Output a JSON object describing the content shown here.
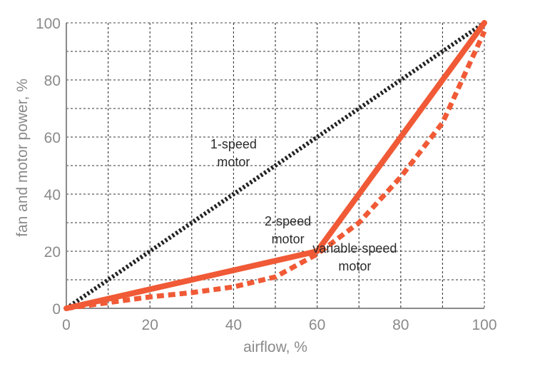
{
  "chart_data": {
    "type": "line",
    "xlabel": "airflow, %",
    "ylabel": "fan and motor power, %",
    "xlim": [
      0,
      100
    ],
    "ylim": [
      0,
      100
    ],
    "xticks": [
      0,
      20,
      40,
      60,
      80,
      100
    ],
    "yticks": [
      0,
      20,
      40,
      60,
      80,
      100
    ],
    "grid": true,
    "series": [
      {
        "key": "one_speed",
        "x": [
          0,
          100
        ],
        "y": [
          0,
          100
        ],
        "color": "#222222",
        "style": "dotted"
      },
      {
        "key": "two_speed",
        "x": [
          0,
          60,
          100
        ],
        "y": [
          0,
          20,
          100
        ],
        "color": "#f05a36",
        "style": "solid"
      },
      {
        "key": "variable_speed",
        "x": [
          0,
          10,
          20,
          30,
          40,
          50,
          60,
          70,
          80,
          90,
          100
        ],
        "y": [
          0,
          2,
          4,
          5.5,
          7.5,
          11,
          19,
          30,
          46,
          65,
          97
        ],
        "color": "#f05a36",
        "style": "dashed"
      }
    ],
    "annotations": [
      {
        "lines": [
          "1-speed",
          "motor"
        ],
        "x": 40,
        "y": 56
      },
      {
        "lines": [
          "2-speed",
          "motor"
        ],
        "x": 53,
        "y": 29
      },
      {
        "lines": [
          "variable-speed",
          "motor"
        ],
        "x": 69,
        "y": 19.5
      }
    ]
  }
}
